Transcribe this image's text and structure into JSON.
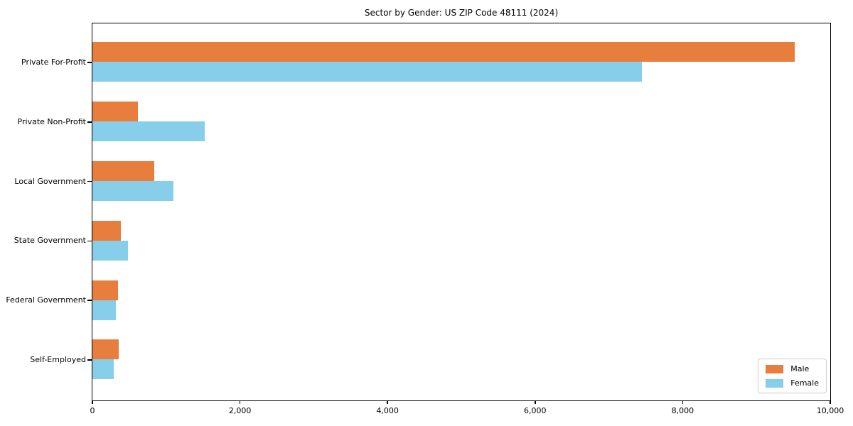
{
  "chart_data": {
    "type": "bar",
    "orientation": "horizontal",
    "title": "Sector by Gender: US ZIP Code 48111 (2024)",
    "categories": [
      "Private For-Profit",
      "Private Non-Profit",
      "Local Government",
      "State Government",
      "Federal Government",
      "Self-Employed"
    ],
    "series": [
      {
        "name": "Male",
        "color": "#e87e3d",
        "values": [
          9520,
          620,
          840,
          385,
          345,
          355
        ]
      },
      {
        "name": "Female",
        "color": "#87ceeb",
        "values": [
          7450,
          1520,
          1100,
          480,
          320,
          290
        ]
      }
    ],
    "xlabel": "",
    "ylabel": "",
    "xlim": [
      0,
      10000
    ],
    "xticks": [
      0,
      2000,
      4000,
      6000,
      8000,
      10000
    ],
    "xtick_labels": [
      "0",
      "2,000",
      "4,000",
      "6,000",
      "8,000",
      "10,000"
    ],
    "grid": false,
    "legend_position": "lower right",
    "legend_labels": [
      "Male",
      "Female"
    ]
  }
}
